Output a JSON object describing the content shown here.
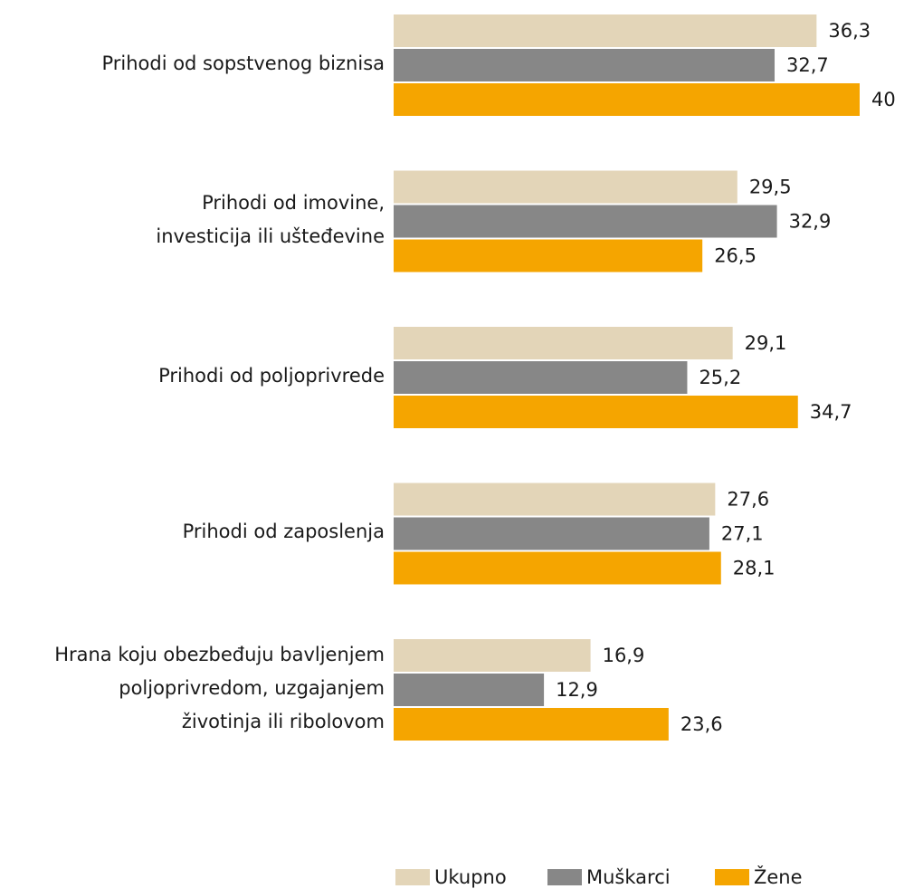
{
  "chart_data": {
    "type": "hbar",
    "categories": [
      "Prihodi od sopstvenog biznisa",
      "Prihodi od imovine,\ninvesticija ili ušteđevine",
      "Prihodi od poljoprivrede",
      "Prihodi od zaposlenja",
      "Hrana koju obezbeđuju bavljenjem\npoljoprivredom, uzgajanjem\nživotinja ili ribolovom"
    ],
    "series": [
      {
        "name": "Ukupno",
        "color": "#e3d5b8",
        "values": [
          36.3,
          29.5,
          29.1,
          27.6,
          16.9
        ],
        "value_labels": [
          "36,3",
          "29,5",
          "29,1",
          "27,6",
          "16,9"
        ]
      },
      {
        "name": "Muškarci",
        "color": "#878787",
        "values": [
          32.7,
          32.9,
          25.2,
          27.1,
          12.9
        ],
        "value_labels": [
          "32,7",
          "32,9",
          "25,2",
          "27,1",
          "12,9"
        ]
      },
      {
        "name": "Žene",
        "color": "#f5a500",
        "values": [
          40,
          26.5,
          34.7,
          28.1,
          23.6
        ],
        "value_labels": [
          "40",
          "26,5",
          "34,7",
          "28,1",
          "23,6"
        ]
      }
    ],
    "legend": "bottom"
  }
}
